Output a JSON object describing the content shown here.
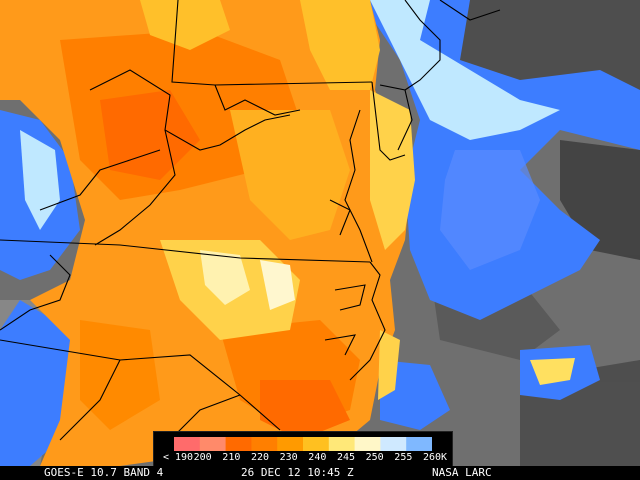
{
  "colorbar": {
    "ticks": [
      "< 190",
      "200",
      "210",
      "220",
      "230",
      "240",
      "245",
      "250",
      "255",
      "260",
      "K"
    ],
    "colors": [
      "#ff6b6b",
      "#ff8a6a",
      "#ff6a00",
      "#ff7f00",
      "#ff9a00",
      "#ffc020",
      "#ffe878",
      "#fff7c8",
      "#cfe9ff",
      "#7fb8ff",
      "#2f6fff"
    ]
  },
  "caption": {
    "satellite": "GOES-E 10.7 BAND 4",
    "datetime": "26 DEC 12 10:45 Z",
    "source": "NASA LARC"
  },
  "palette": {
    "cold_orange": "#ff8c00",
    "deep_orange": "#ff6a00",
    "yellow": "#ffd24a",
    "pale": "#fff2b0",
    "cyan": "#bfe8ff",
    "blue": "#3d7dff",
    "gray_dark": "#4a4a4a",
    "gray_mid": "#777777",
    "gray_light": "#9b9b9b",
    "border": "#000000"
  }
}
